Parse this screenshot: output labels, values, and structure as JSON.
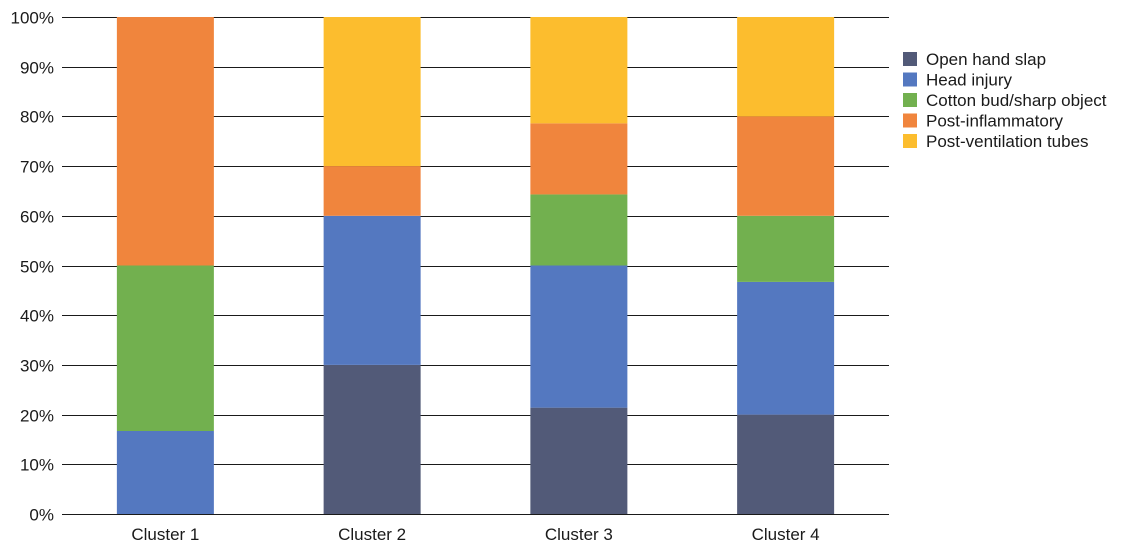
{
  "chart_data": {
    "type": "bar",
    "stacked": true,
    "percent_stacked": true,
    "categories": [
      "Cluster 1",
      "Cluster 2",
      "Cluster 3",
      "Cluster 4"
    ],
    "series": [
      {
        "name": "Open hand slap",
        "color": "#525a78",
        "values": [
          0,
          30,
          21.4,
          20
        ]
      },
      {
        "name": "Head injury",
        "color": "#5478c0",
        "values": [
          16.7,
          30,
          28.6,
          26.7
        ]
      },
      {
        "name": "Cotton bud/sharp object",
        "color": "#72b04f",
        "values": [
          33.3,
          0,
          14.3,
          13.3
        ]
      },
      {
        "name": "Post-inflammatory",
        "color": "#f0853d",
        "values": [
          50,
          10,
          14.3,
          20
        ]
      },
      {
        "name": "Post-ventilation tubes",
        "color": "#fcbd2e",
        "values": [
          0,
          30,
          21.4,
          20
        ]
      }
    ],
    "yticks": [
      "0%",
      "10%",
      "20%",
      "30%",
      "40%",
      "50%",
      "60%",
      "70%",
      "80%",
      "90%",
      "100%"
    ],
    "ylim": [
      0,
      100
    ],
    "grid": true,
    "legend_position": "right",
    "title": "",
    "xlabel": "",
    "ylabel": ""
  }
}
